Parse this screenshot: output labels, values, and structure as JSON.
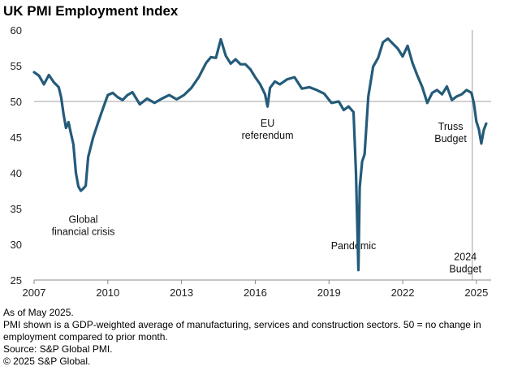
{
  "chart_data": {
    "type": "line",
    "title": "UK PMI Employment Index",
    "xlabel": "",
    "ylabel": "",
    "xlim": [
      2007,
      2025.6
    ],
    "ylim": [
      25,
      60
    ],
    "x_ticks": [
      2007,
      2010,
      2013,
      2016,
      2019,
      2022,
      2025
    ],
    "y_ticks": [
      25,
      30,
      35,
      40,
      45,
      50,
      55,
      60
    ],
    "reference_lines": {
      "horizontal": 50,
      "vertical": 2024.83
    },
    "grid": false,
    "line_color": "#245b7a",
    "series": [
      {
        "x": [
          2007.0,
          2007.2,
          2007.4,
          2007.6,
          2007.8,
          2008.0,
          2008.1,
          2008.2,
          2008.3,
          2008.4,
          2008.5,
          2008.6,
          2008.7,
          2008.8,
          2008.9,
          2009.0,
          2009.1,
          2009.2,
          2009.4,
          2009.6,
          2009.8,
          2010.0,
          2010.2,
          2010.4,
          2010.6,
          2010.8,
          2011.0,
          2011.3,
          2011.6,
          2011.9,
          2012.2,
          2012.5,
          2012.8,
          2013.1,
          2013.4,
          2013.7,
          2014.0,
          2014.2,
          2014.4,
          2014.6,
          2014.8,
          2015.0,
          2015.2,
          2015.4,
          2015.6,
          2015.8,
          2016.0,
          2016.2,
          2016.4,
          2016.5,
          2016.6,
          2016.8,
          2017.0,
          2017.3,
          2017.6,
          2017.9,
          2018.2,
          2018.5,
          2018.8,
          2019.1,
          2019.4,
          2019.6,
          2019.8,
          2020.0,
          2020.1,
          2020.2,
          2020.25,
          2020.35,
          2020.45,
          2020.6,
          2020.8,
          2021.0,
          2021.2,
          2021.4,
          2021.6,
          2021.8,
          2022.0,
          2022.2,
          2022.4,
          2022.6,
          2022.8,
          2023.0,
          2023.2,
          2023.4,
          2023.6,
          2023.8,
          2024.0,
          2024.2,
          2024.4,
          2024.6,
          2024.8,
          2024.9,
          2025.0,
          2025.1,
          2025.2,
          2025.3,
          2025.4
        ],
        "values": [
          54.1,
          53.6,
          52.4,
          53.7,
          52.7,
          52.0,
          50.6,
          48.2,
          46.3,
          47.1,
          45.5,
          44.0,
          40.0,
          38.1,
          37.5,
          37.8,
          38.2,
          42.2,
          44.9,
          47.0,
          49.0,
          50.9,
          51.2,
          50.6,
          50.2,
          50.9,
          51.3,
          49.6,
          50.4,
          49.8,
          50.4,
          50.9,
          50.3,
          50.9,
          51.9,
          53.4,
          55.4,
          56.2,
          56.1,
          58.7,
          56.4,
          55.3,
          55.9,
          55.2,
          55.2,
          54.5,
          53.4,
          52.4,
          51.0,
          49.3,
          51.9,
          52.8,
          52.4,
          53.1,
          53.4,
          51.8,
          52.0,
          51.6,
          51.1,
          49.8,
          50.0,
          48.8,
          49.3,
          48.5,
          40.0,
          26.4,
          38.0,
          41.6,
          42.6,
          50.7,
          54.9,
          56.1,
          58.3,
          58.8,
          58.1,
          57.4,
          56.3,
          57.8,
          55.4,
          53.6,
          52.0,
          49.8,
          51.2,
          51.6,
          51.0,
          52.1,
          50.2,
          50.7,
          51.0,
          51.6,
          51.2,
          49.7,
          47.2,
          46.1,
          44.1,
          46.0,
          46.9
        ]
      }
    ],
    "annotations": [
      {
        "lines": [
          "Global",
          "financial crisis"
        ],
        "x": 2009.0,
        "y": 33.0
      },
      {
        "lines": [
          "EU",
          "referendum"
        ],
        "x": 2016.5,
        "y": 46.5
      },
      {
        "lines": [
          "Pandemic"
        ],
        "x": 2020.0,
        "y": 29.3
      },
      {
        "lines": [
          "Truss",
          "Budget"
        ],
        "x": 2023.95,
        "y": 46.0
      },
      {
        "lines": [
          "2024",
          "Budget"
        ],
        "x": 2024.55,
        "y": 27.8
      }
    ]
  },
  "footnotes": {
    "as_of": "As of May 2025.",
    "note": "PMI shown is a GDP-weighted average of manufacturing, services and construction sectors. 50 = no change in employment compared to prior month.",
    "source": "Source: S&P Global PMI.",
    "copyright": "© 2025 S&P Global."
  }
}
